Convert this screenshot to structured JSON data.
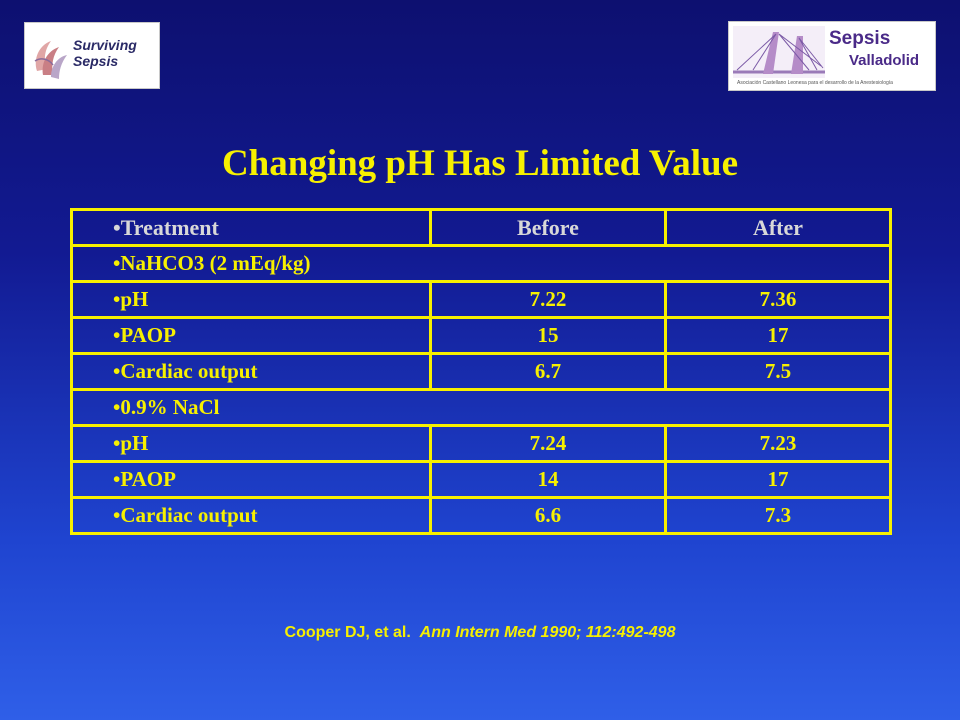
{
  "logos": {
    "left": {
      "text_line1": "Surviving",
      "text_line2": "Sepsis"
    },
    "right": {
      "title": "Sepsis",
      "subtitle": "Valladolid",
      "tagline": "Asociación Castellano Leonesa para el desarrollo de la Anestesiología"
    }
  },
  "title": "Changing pH Has Limited Value",
  "table": {
    "header": {
      "treatment": "•Treatment",
      "before": "Before",
      "after": "After"
    },
    "rows": [
      {
        "label": "•NaHCO3 (2 mEq/kg)",
        "before": "",
        "after": ""
      },
      {
        "label": "•pH",
        "before": "7.22",
        "after": "7.36"
      },
      {
        "label": "•PAOP",
        "before": "15",
        "after": "17"
      },
      {
        "label": "•Cardiac output",
        "before": "6.7",
        "after": "7.5"
      },
      {
        "label": "•0.9% NaCl",
        "before": "",
        "after": ""
      },
      {
        "label": "•pH",
        "before": "7.24",
        "after": "7.23"
      },
      {
        "label": "•PAOP",
        "before": "14",
        "after": "17"
      },
      {
        "label": "•Cardiac output",
        "before": "6.6",
        "after": "7.3"
      }
    ]
  },
  "citation": {
    "authors": "Cooper DJ, et al.",
    "journal": "Ann Intern Med 1990; 112:492-498"
  },
  "colors": {
    "accent": "#f7f000",
    "background_top": "#0d1070",
    "background_bottom": "#2f5fe8",
    "header_text": "#d8d8d8"
  }
}
